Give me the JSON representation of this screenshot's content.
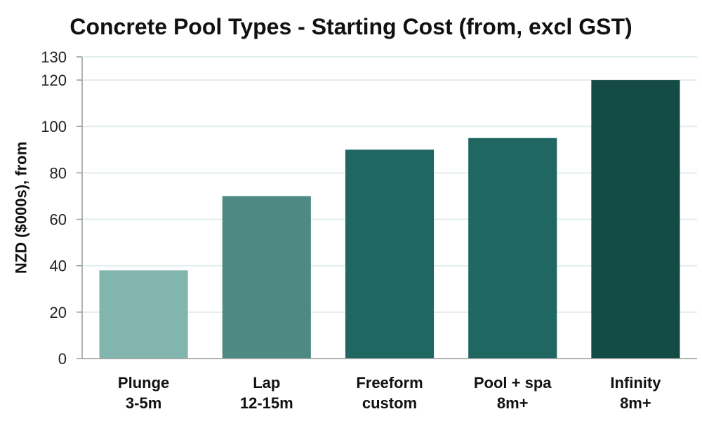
{
  "chart_data": {
    "type": "bar",
    "title": "Concrete Pool Types - Starting Cost (from, excl GST)",
    "xlabel": "",
    "ylabel": "NZD ($000s), from",
    "categories": [
      [
        "Plunge",
        "3-5m"
      ],
      [
        "Lap",
        "12-15m"
      ],
      [
        "Freeform",
        "custom"
      ],
      [
        "Pool + spa",
        "8m+"
      ],
      [
        "Infinity",
        "8m+"
      ]
    ],
    "values": [
      38,
      70,
      90,
      95,
      120
    ],
    "ylim": [
      0,
      130
    ],
    "yticks": [
      0,
      20,
      40,
      60,
      80,
      100,
      120,
      130
    ],
    "bar_colors": [
      "#82b5ae",
      "#4f8983",
      "#1f6760",
      "#1f6760",
      "#144b44"
    ],
    "grid": true,
    "grid_color": "#e2eeec",
    "axis_color": "#999999",
    "legend": "none"
  }
}
